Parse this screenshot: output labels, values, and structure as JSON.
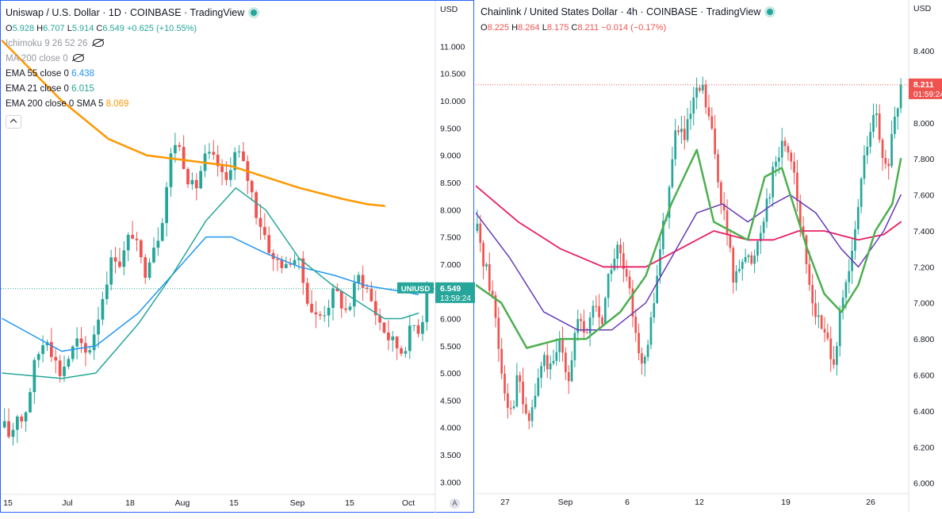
{
  "left": {
    "title": "Uniswap / U.S. Dollar · 1D · COINBASE · TradingView",
    "ohlc": {
      "o_label": "O",
      "o": "5.928",
      "h_label": "H",
      "h": "6.707",
      "l_label": "L",
      "l": "5.914",
      "c_label": "C",
      "c": "6.549",
      "chg": "+0.625 (+10.55%)"
    },
    "indicators": [
      {
        "label": "Ichimoku 9 26 52 26",
        "value": "",
        "color": "#9598a1",
        "hidden": true
      },
      {
        "label": "MA 200 close 0",
        "value": "",
        "color": "#9598a1",
        "hidden": true
      },
      {
        "label": "EMA 55 close 0",
        "value": "6.438",
        "color": "#2196f3"
      },
      {
        "label": "EMA 21 close 0",
        "value": "6.015",
        "color": "#26a69a"
      },
      {
        "label": "EMA 200 close 0 SMA 5",
        "value": "8.069",
        "color": "#ff9800"
      }
    ],
    "currency": "USD",
    "symbol_tag": "UNIUSD",
    "price_tag": "6.549",
    "countdown": "13:59:24",
    "auto_label": "A"
  },
  "right": {
    "title": "Chainlink / United States Dollar · 4h · COINBASE · TradingView",
    "ohlc": {
      "o_label": "O",
      "o": "8.225",
      "h_label": "H",
      "h": "8.264",
      "l_label": "L",
      "l": "8.175",
      "c_label": "C",
      "c": "8.211",
      "chg": "−0.014 (−0.17%)"
    },
    "currency": "USD",
    "price_tag": "8.211",
    "countdown": "01:59:24"
  },
  "chart_data": [
    {
      "type": "candlestick",
      "symbol": "UNIUSD",
      "timeframe": "1D",
      "ylim": [
        2.8,
        11.4
      ],
      "y_ticks": [
        "3.000",
        "3.500",
        "4.000",
        "4.500",
        "5.000",
        "5.500",
        "6.000",
        "6.500",
        "7.000",
        "7.500",
        "8.000",
        "8.500",
        "9.000",
        "9.500",
        "10.000",
        "10.500",
        "11.000"
      ],
      "x_ticks": [
        "15",
        "Jul",
        "18",
        "Aug",
        "15",
        "Sep",
        "15",
        "Oct"
      ],
      "close_path": [
        4.0,
        3.8,
        4.3,
        4.1,
        4.6,
        5.2,
        5.5,
        5.7,
        5.3,
        5.0,
        5.2,
        5.4,
        5.6,
        5.3,
        5.5,
        5.9,
        6.4,
        6.9,
        7.2,
        7.0,
        7.4,
        7.6,
        7.1,
        6.9,
        7.3,
        7.5,
        8.0,
        8.9,
        9.3,
        9.0,
        8.6,
        8.3,
        8.7,
        9.0,
        8.9,
        8.8,
        8.4,
        8.9,
        9.1,
        8.8,
        8.5,
        8.0,
        7.7,
        7.4,
        7.0,
        7.1,
        6.9,
        7.2,
        7.0,
        6.6,
        6.2,
        6.0,
        6.1,
        6.3,
        6.5,
        6.3,
        6.1,
        6.5,
        6.8,
        6.6,
        6.3,
        6.0,
        5.8,
        5.6,
        5.5,
        5.4,
        5.7,
        5.9,
        5.8,
        6.55
      ],
      "ema21": [
        [
          0,
          5.0
        ],
        [
          14,
          4.9
        ],
        [
          22,
          5.0
        ],
        [
          32,
          5.9
        ],
        [
          40,
          6.8
        ],
        [
          48,
          7.8
        ],
        [
          55,
          8.4
        ],
        [
          62,
          8.0
        ],
        [
          70,
          7.1
        ],
        [
          78,
          6.6
        ],
        [
          86,
          6.2
        ],
        [
          90,
          6.0
        ],
        [
          94,
          6.0
        ],
        [
          98,
          6.1
        ]
      ],
      "ema55": [
        [
          0,
          6.0
        ],
        [
          14,
          5.4
        ],
        [
          22,
          5.5
        ],
        [
          32,
          6.1
        ],
        [
          40,
          6.8
        ],
        [
          48,
          7.5
        ],
        [
          54,
          7.5
        ],
        [
          62,
          7.2
        ],
        [
          70,
          6.95
        ],
        [
          78,
          6.8
        ],
        [
          86,
          6.6
        ],
        [
          94,
          6.5
        ],
        [
          98,
          6.44
        ]
      ],
      "ema200_sma5": [
        [
          0,
          11.1
        ],
        [
          14,
          10.0
        ],
        [
          25,
          9.3
        ],
        [
          34,
          9.0
        ],
        [
          44,
          8.9
        ],
        [
          54,
          8.8
        ],
        [
          62,
          8.6
        ],
        [
          70,
          8.4
        ],
        [
          80,
          8.2
        ],
        [
          86,
          8.1
        ],
        [
          90,
          8.07
        ]
      ],
      "last_price": 6.549,
      "colors": {
        "up": "#26a69a",
        "down": "#ef5350",
        "ema21": "#26a69a",
        "ema55": "#2196f3",
        "ema200": "#ff9800"
      }
    },
    {
      "type": "candlestick",
      "symbol": "LINKUSD",
      "timeframe": "4h",
      "ylim": [
        5.95,
        8.55
      ],
      "y_ticks": [
        "6.000",
        "6.200",
        "6.400",
        "6.600",
        "6.800",
        "7.000",
        "7.200",
        "7.400",
        "7.600",
        "7.800",
        "8.000",
        "8.200",
        "8.400"
      ],
      "x_ticks": [
        "27",
        "Sep",
        "6",
        "12",
        "19",
        "26"
      ],
      "close_path": [
        7.4,
        7.2,
        7.0,
        6.6,
        6.4,
        6.6,
        6.3,
        6.5,
        6.7,
        6.6,
        6.8,
        6.6,
        6.9,
        6.8,
        7.0,
        6.9,
        7.2,
        7.3,
        7.1,
        6.9,
        6.6,
        6.9,
        7.3,
        7.6,
        8.0,
        7.9,
        8.1,
        8.2,
        8.0,
        7.7,
        7.4,
        7.1,
        7.3,
        7.2,
        7.4,
        7.6,
        7.8,
        7.9,
        7.8,
        7.4,
        7.1,
        6.9,
        6.8,
        6.7,
        7.0,
        7.2,
        7.6,
        7.9,
        8.05,
        7.7,
        7.9,
        8.21
      ],
      "ma_green": [
        [
          0,
          7.1
        ],
        [
          6,
          7.0
        ],
        [
          12,
          6.75
        ],
        [
          20,
          6.8
        ],
        [
          26,
          6.8
        ],
        [
          34,
          6.95
        ],
        [
          40,
          7.15
        ],
        [
          46,
          7.55
        ],
        [
          50,
          7.75
        ],
        [
          52,
          7.85
        ],
        [
          56,
          7.45
        ],
        [
          64,
          7.35
        ],
        [
          68,
          7.7
        ],
        [
          72,
          7.75
        ],
        [
          78,
          7.3
        ],
        [
          82,
          7.05
        ],
        [
          86,
          6.95
        ],
        [
          90,
          7.1
        ],
        [
          94,
          7.4
        ],
        [
          98,
          7.55
        ],
        [
          100,
          7.8
        ]
      ],
      "ma_purple": [
        [
          0,
          7.5
        ],
        [
          8,
          7.25
        ],
        [
          16,
          6.95
        ],
        [
          24,
          6.85
        ],
        [
          32,
          6.85
        ],
        [
          40,
          7.0
        ],
        [
          46,
          7.25
        ],
        [
          52,
          7.5
        ],
        [
          58,
          7.55
        ],
        [
          64,
          7.45
        ],
        [
          70,
          7.55
        ],
        [
          74,
          7.6
        ],
        [
          80,
          7.5
        ],
        [
          86,
          7.3
        ],
        [
          90,
          7.2
        ],
        [
          96,
          7.4
        ],
        [
          100,
          7.6
        ]
      ],
      "ma_red": [
        [
          0,
          7.65
        ],
        [
          10,
          7.45
        ],
        [
          20,
          7.3
        ],
        [
          30,
          7.2
        ],
        [
          40,
          7.2
        ],
        [
          48,
          7.3
        ],
        [
          56,
          7.4
        ],
        [
          64,
          7.35
        ],
        [
          70,
          7.35
        ],
        [
          76,
          7.4
        ],
        [
          82,
          7.4
        ],
        [
          90,
          7.35
        ],
        [
          96,
          7.38
        ],
        [
          100,
          7.45
        ]
      ],
      "last_price": 8.211,
      "colors": {
        "up": "#26a69a",
        "down": "#ef5350",
        "ma_green": "#4caf50",
        "ma_purple": "#673ab7",
        "ma_red": "#e91e63"
      }
    }
  ]
}
